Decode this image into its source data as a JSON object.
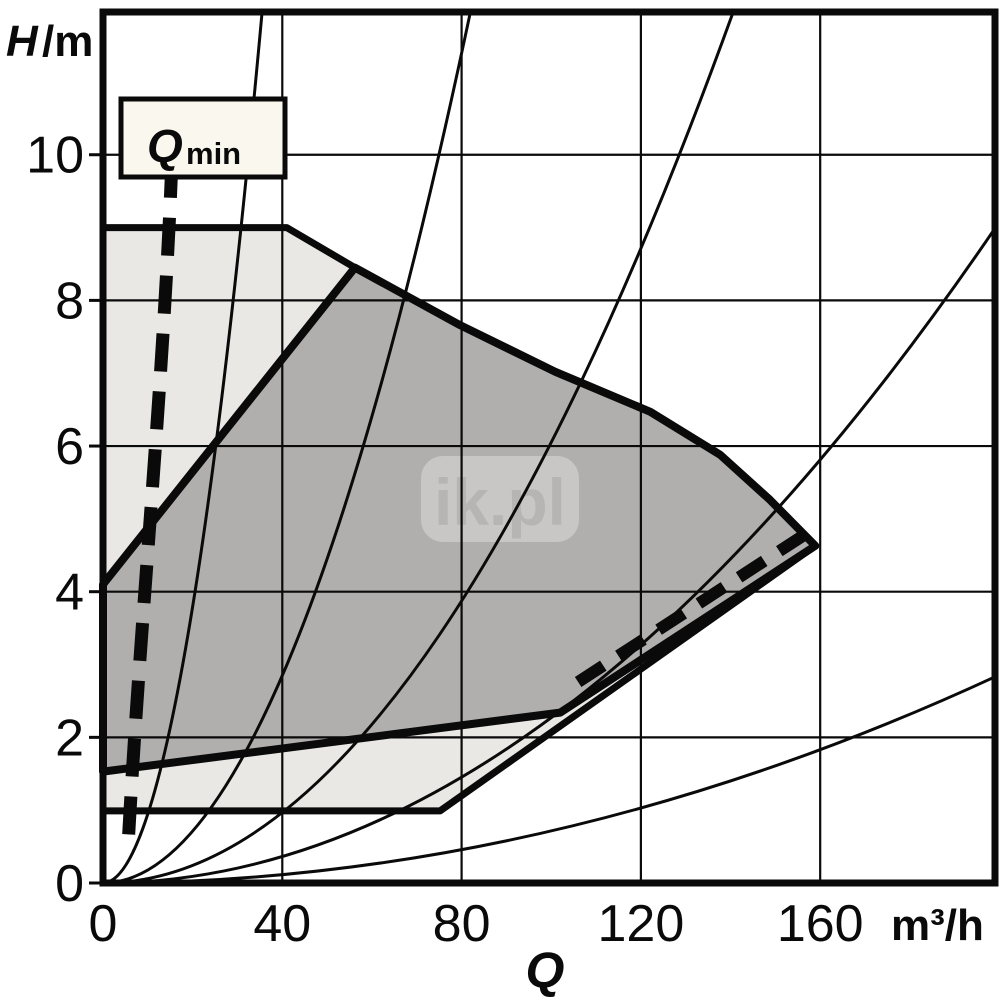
{
  "colors": {
    "line": "#0a0a0a",
    "light_region_fill": "#e9e8e5",
    "dark_region_fill": "#b1afae",
    "qmin_box_fill": "#faf8ee",
    "watermark_box": "#c9c7c5",
    "watermark_text": "#b7b5b3",
    "background": "#ffffff"
  },
  "watermark": {
    "text": "ik.pl"
  },
  "chart_data": {
    "type": "area",
    "title": "",
    "ylabel_main": "H",
    "ylabel_unit": "/m",
    "xlabel": "Q",
    "x_unit": "m³/h",
    "xlim": [
      0,
      199
    ],
    "ylim": [
      0,
      11.96
    ],
    "x_ticks": [
      0,
      40,
      80,
      120,
      160
    ],
    "y_ticks": [
      0,
      2,
      4,
      6,
      8,
      10
    ],
    "grid": true,
    "qmin": {
      "label_main": "Q",
      "label_sub": "min",
      "dashed_bezier_QH": [
        [
          15.4,
          9.93
        ],
        [
          13.4,
          6.77
        ],
        [
          8.3,
          3.61
        ],
        [
          5.6,
          0.52
        ]
      ]
    },
    "regions": [
      {
        "name": "extended-operating-field",
        "shade": "light-gray",
        "vertices_QH": [
          [
            0,
            9.0
          ],
          [
            41,
            9.0
          ],
          [
            56.2,
            8.45
          ],
          [
            79.7,
            7.66
          ],
          [
            100.9,
            7.02
          ],
          [
            122.1,
            6.47
          ],
          [
            137.7,
            5.88
          ],
          [
            148.8,
            5.26
          ],
          [
            158.9,
            4.63
          ],
          [
            75.2,
            0.99
          ],
          [
            0,
            0.99
          ]
        ]
      },
      {
        "name": "main-operating-field",
        "shade": "dark-gray",
        "vertices_QH": [
          [
            0,
            4.1
          ],
          [
            56.2,
            8.45
          ],
          [
            79.7,
            7.66
          ],
          [
            100.9,
            7.02
          ],
          [
            122.1,
            6.47
          ],
          [
            137.7,
            5.88
          ],
          [
            148.8,
            5.26
          ],
          [
            158.9,
            4.63
          ],
          [
            102,
            2.34
          ],
          [
            0,
            1.53
          ]
        ]
      }
    ],
    "system_curves": {
      "model": "H = k * Q^2 (thin curves from origin)",
      "k_values": [
        0.00949,
        0.00178,
        0.000605,
        0.000227,
        7.15e-05
      ]
    },
    "dashed_edge_segment_QH": [
      [
        106,
        2.65
      ],
      [
        158.2,
        4.74
      ]
    ]
  }
}
